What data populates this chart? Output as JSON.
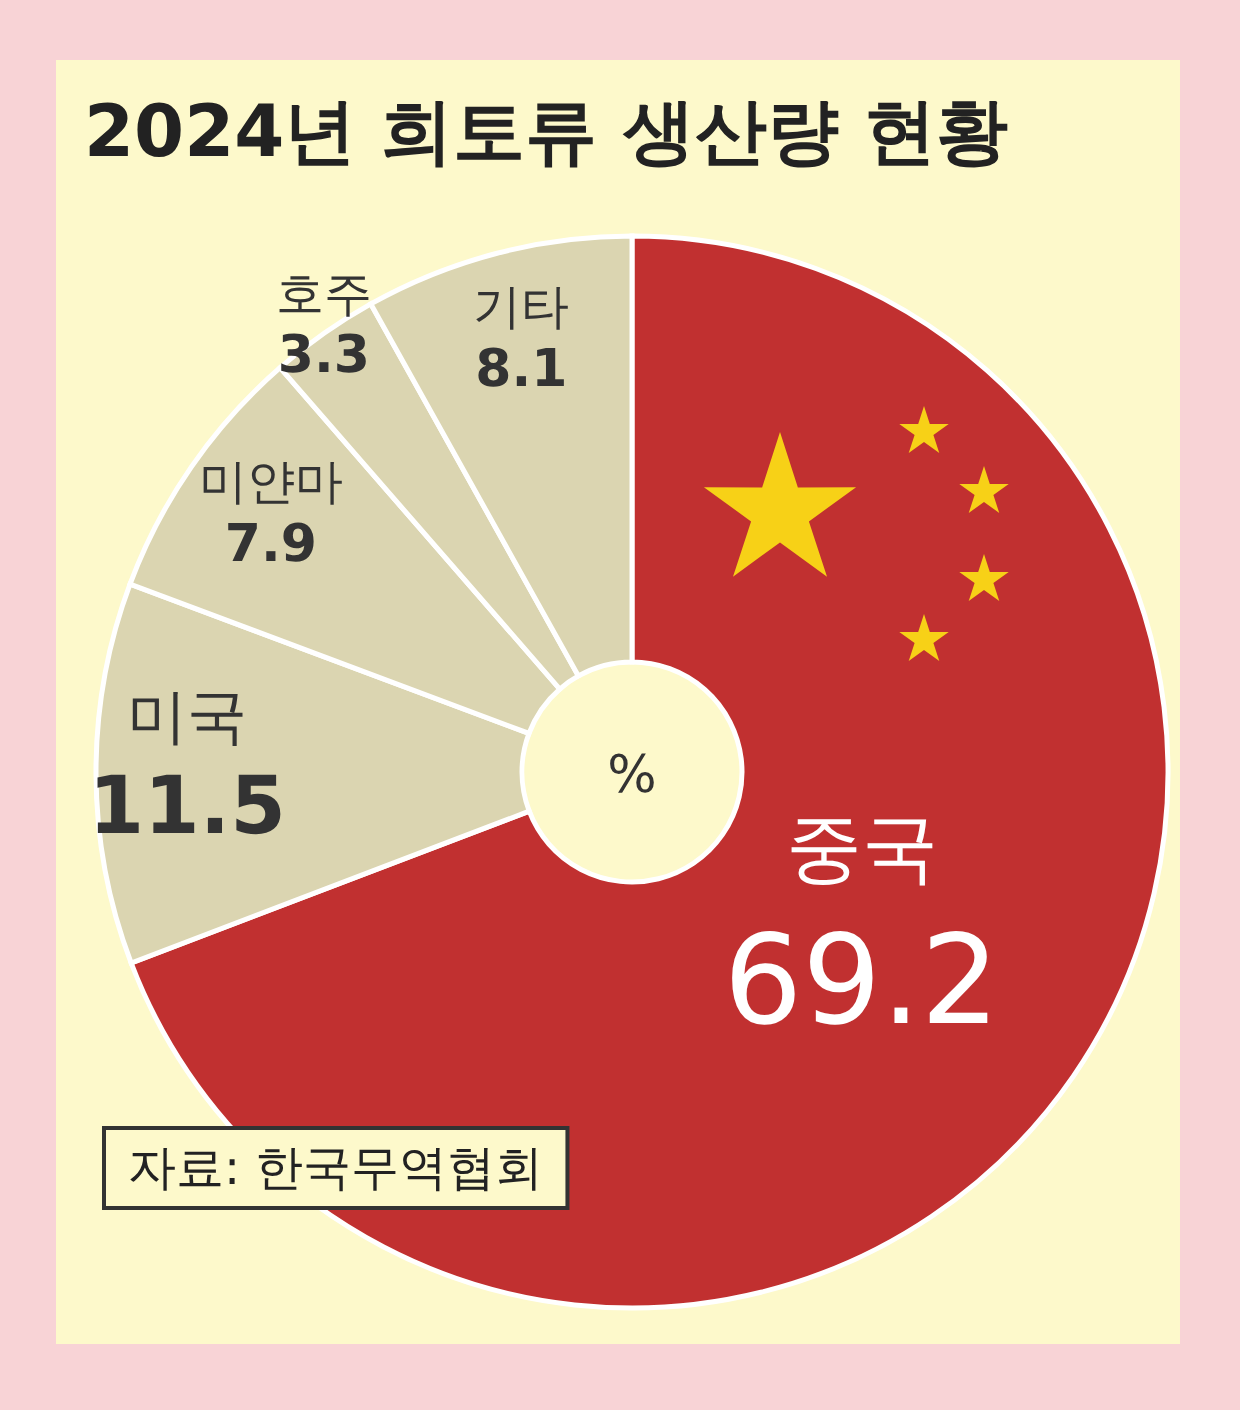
{
  "chart_data": {
    "type": "donut",
    "title": "2024년 희토류 생산량 현황",
    "categories": [
      "중국",
      "미국",
      "미얀마",
      "호주",
      "기타"
    ],
    "values": [
      69.2,
      11.5,
      7.9,
      3.3,
      8.1
    ],
    "colors": [
      "#c13030",
      "#dbd5b1",
      "#dbd5b1",
      "#dbd5b1",
      "#dbd5b1"
    ],
    "data_labels": true,
    "annotations": [
      "%",
      "자료: 한국무역협회"
    ]
  }
}
